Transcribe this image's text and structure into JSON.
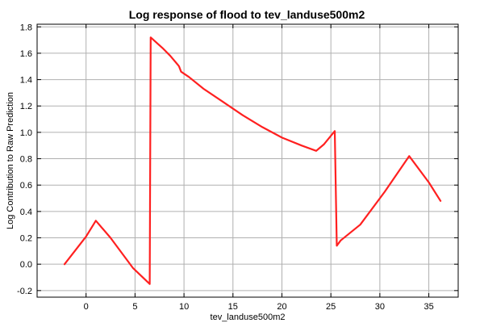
{
  "chart_data": {
    "type": "line",
    "title": "Log response of flood to tev_landuse500m2",
    "xlabel": "tev_landuse500m2",
    "ylabel": "Log Contribution to Raw Prediction",
    "xlim": [
      -5,
      38
    ],
    "ylim": [
      -0.25,
      1.82
    ],
    "xticks": [
      0,
      5,
      10,
      15,
      20,
      25,
      30,
      35
    ],
    "yticks": [
      -0.2,
      0.0,
      0.2,
      0.4,
      0.6,
      0.8,
      1.0,
      1.2,
      1.4,
      1.6,
      1.8
    ],
    "xtick_labels": [
      "0",
      "5",
      "10",
      "15",
      "20",
      "25",
      "30",
      "35"
    ],
    "ytick_labels": [
      "-0.2",
      "0.0",
      "0.2",
      "0.4",
      "0.6",
      "0.8",
      "1.0",
      "1.2",
      "1.4",
      "1.6",
      "1.8"
    ],
    "grid": true,
    "series": [
      {
        "color": "#ff2020",
        "x": [
          -2.2,
          0,
          1.0,
          2.5,
          4.8,
          6.5,
          6.6,
          7.8,
          8.6,
          9.4,
          9.5,
          9.7,
          10.5,
          12.0,
          14.0,
          16.0,
          18.0,
          20.0,
          22.0,
          23.5,
          24.3,
          25.4,
          25.6,
          26.0,
          28.0,
          30.5,
          33.0,
          35.0,
          36.2
        ],
        "y": [
          0.0,
          0.21,
          0.33,
          0.2,
          -0.03,
          -0.15,
          1.72,
          1.64,
          1.58,
          1.51,
          1.5,
          1.46,
          1.42,
          1.33,
          1.23,
          1.13,
          1.04,
          0.96,
          0.9,
          0.86,
          0.91,
          1.01,
          0.14,
          0.18,
          0.3,
          0.55,
          0.82,
          0.62,
          0.48
        ]
      }
    ]
  }
}
